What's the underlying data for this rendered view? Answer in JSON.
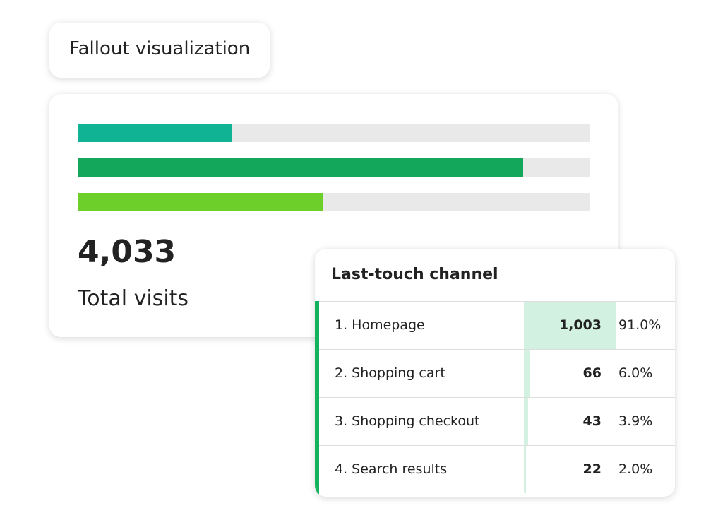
{
  "label_card": {
    "title": "Fallout visualization"
  },
  "summary_card": {
    "bars": [
      {
        "color": "#10b394",
        "value": 30
      },
      {
        "color": "#12a75a",
        "value": 87
      },
      {
        "color": "#6dcf2a",
        "value": 48
      }
    ],
    "total": "4,033",
    "total_label": "Total visits"
  },
  "table": {
    "title": "Last-touch channel",
    "accent_color": "#12b35c",
    "rows": [
      {
        "label": "1. Homepage",
        "count": "1,003",
        "percent": 91.0,
        "percent_label": "91.0%"
      },
      {
        "label": "2. Shopping cart",
        "count": "66",
        "percent": 6.0,
        "percent_label": "6.0%"
      },
      {
        "label": "3.  Shopping checkout",
        "count": "43",
        "percent": 3.9,
        "percent_label": "3.9%"
      },
      {
        "label": "4. Search results",
        "count": "22",
        "percent": 2.0,
        "percent_label": "2.0%"
      }
    ]
  }
}
